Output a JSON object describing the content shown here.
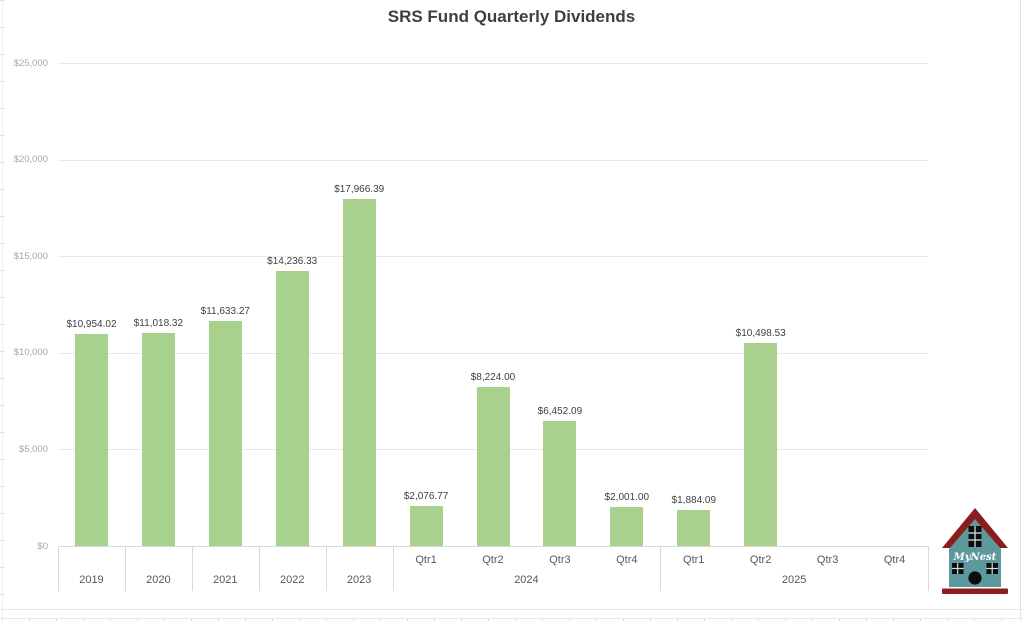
{
  "title": "SRS Fund Quarterly Dividends",
  "colors": {
    "bar": "#a9d18e",
    "gridline": "#e9e9e9",
    "axis_line": "#d9d9d9",
    "title_text": "#3f3f3f",
    "data_label_text": "#3f3f3f",
    "y_tick_text": "#a6a6a6",
    "x_tick_text": "#595959",
    "logo_body": "#5d989c",
    "logo_roof": "#8c1d1d",
    "logo_detail": "#0d0d0d",
    "logo_text": "#ffffff"
  },
  "chart_data": {
    "type": "bar",
    "title": "SRS Fund Quarterly Dividends",
    "xlabel": "",
    "ylabel": "",
    "ylim": [
      0,
      25000
    ],
    "grid": true,
    "legend": "none",
    "y_ticks": [
      {
        "value": 0,
        "label": "$0"
      },
      {
        "value": 5000,
        "label": "$5,000"
      },
      {
        "value": 10000,
        "label": "$10,000"
      },
      {
        "value": 15000,
        "label": "$15,000"
      },
      {
        "value": 20000,
        "label": "$20,000"
      },
      {
        "value": 25000,
        "label": "$25,000"
      }
    ],
    "slot_labels": [
      "",
      "",
      "",
      "",
      "",
      "Qtr1",
      "Qtr2",
      "Qtr3",
      "Qtr4",
      "Qtr1",
      "Qtr2",
      "Qtr3",
      "Qtr4"
    ],
    "groups": [
      {
        "label": "2019",
        "start": 0,
        "span": 1
      },
      {
        "label": "2020",
        "start": 1,
        "span": 1
      },
      {
        "label": "2021",
        "start": 2,
        "span": 1
      },
      {
        "label": "2022",
        "start": 3,
        "span": 1
      },
      {
        "label": "2023",
        "start": 4,
        "span": 1
      },
      {
        "label": "2024",
        "start": 5,
        "span": 4
      },
      {
        "label": "2025",
        "start": 9,
        "span": 4
      }
    ],
    "values": [
      10954.02,
      11018.32,
      11633.27,
      14236.33,
      17966.39,
      2076.77,
      8224.0,
      6452.09,
      2001.0,
      1884.09,
      10498.53,
      null,
      null
    ],
    "data_labels": [
      "$10,954.02",
      "$11,018.32",
      "$11,633.27",
      "$14,236.33",
      "$17,966.39",
      "$2,076.77",
      "$8,224.00",
      "$6,452.09",
      "$2,001.00",
      "$1,884.09",
      "$10,498.53",
      null,
      null
    ]
  },
  "logo": {
    "text": "MyNest"
  }
}
